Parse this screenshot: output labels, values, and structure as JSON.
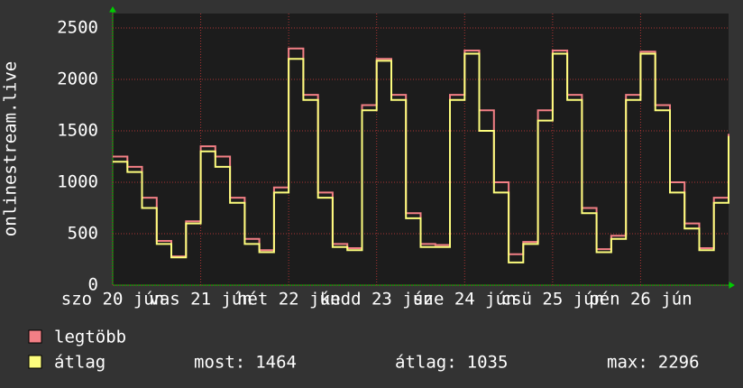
{
  "chart_data": {
    "type": "line",
    "y_label": "onlinestream.live",
    "x": [
      0,
      4,
      8,
      12,
      16,
      20,
      24,
      28,
      32,
      36,
      40,
      44,
      48,
      52,
      56,
      60,
      64,
      68,
      72,
      76,
      80,
      84,
      88,
      92,
      96,
      100,
      104,
      108,
      112,
      116,
      120,
      124,
      128,
      132,
      136,
      140,
      144,
      148,
      152,
      156,
      160,
      164,
      168
    ],
    "series": [
      {
        "name": "legtöbb",
        "color": "#f27f85",
        "values": [
          1250,
          1150,
          850,
          430,
          280,
          620,
          1350,
          1250,
          850,
          450,
          340,
          950,
          2300,
          1850,
          900,
          400,
          360,
          1750,
          2200,
          1850,
          700,
          400,
          390,
          1850,
          2280,
          1700,
          1000,
          300,
          420,
          1700,
          2280,
          1850,
          750,
          350,
          480,
          1850,
          2270,
          1750,
          1000,
          600,
          360,
          850,
          1470
        ]
      },
      {
        "name": "átlag",
        "color": "#fdfd7d",
        "values": [
          1200,
          1100,
          750,
          400,
          270,
          600,
          1300,
          1150,
          800,
          400,
          320,
          900,
          2200,
          1800,
          850,
          370,
          340,
          1700,
          2180,
          1800,
          650,
          370,
          370,
          1800,
          2250,
          1500,
          900,
          220,
          400,
          1600,
          2250,
          1800,
          700,
          320,
          450,
          1800,
          2250,
          1700,
          900,
          550,
          340,
          800,
          1450
        ]
      }
    ],
    "xlim": [
      0,
      168
    ],
    "xticks": [
      {
        "value": 0,
        "label": "szo 20 jún"
      },
      {
        "value": 24,
        "label": "vas 21 jún"
      },
      {
        "value": 48,
        "label": "hét 22 jún"
      },
      {
        "value": 72,
        "label": "kedd 23 jún"
      },
      {
        "value": 96,
        "label": "sze 24 jún"
      },
      {
        "value": 120,
        "label": "csü 25 jún"
      },
      {
        "value": 144,
        "label": "pén 26 jún"
      }
    ],
    "ylim": [
      0,
      2640
    ],
    "yticks": [
      0,
      500,
      1000,
      1500,
      2000,
      2500
    ],
    "grid": true,
    "stats": [
      {
        "label": "most:",
        "value": 1464
      },
      {
        "label": "átlag:",
        "value": 1035
      },
      {
        "label": "max:",
        "value": 2296
      }
    ]
  }
}
